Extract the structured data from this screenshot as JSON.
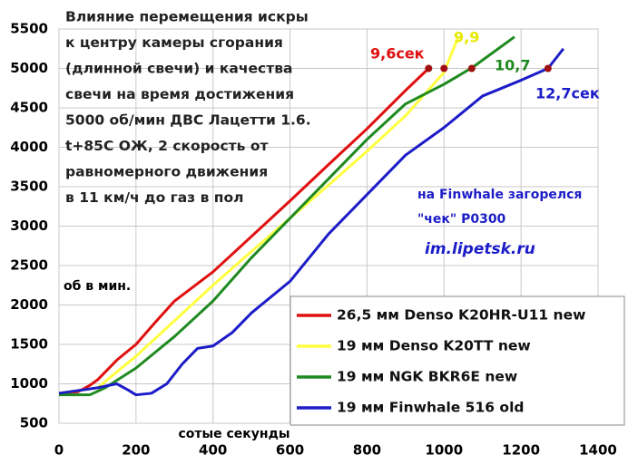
{
  "chart_data": {
    "type": "line",
    "title": [
      "Влияние перемещения искры",
      "к центру камеры сгорания",
      "(длинной свечи) и качества",
      "свечи на время достижения",
      "5000 об/мин ДВС Лацетти 1.6.",
      "t+85C ОЖ, 2 скорость от",
      "равномерного движения",
      "в 11 км/ч до газ в пол"
    ],
    "x_label": "сотые секунды",
    "y_label": "об в мин.",
    "xlim": [
      0,
      1400
    ],
    "xticks": [
      0,
      200,
      400,
      600,
      800,
      1000,
      1200,
      1400
    ],
    "ylim": [
      500,
      5500
    ],
    "yticks": [
      500,
      1000,
      1500,
      2000,
      2500,
      3000,
      3500,
      4000,
      4500,
      5000,
      5500
    ],
    "grid": true,
    "series": [
      {
        "name": "26,5 мм Denso K20HR-U11 new",
        "color": "#e01010",
        "x": [
          0,
          50,
          80,
          100,
          150,
          200,
          250,
          300,
          400,
          500,
          600,
          700,
          800,
          900,
          960
        ],
        "values": [
          880,
          900,
          980,
          1050,
          1300,
          1500,
          1780,
          2050,
          2420,
          2870,
          3320,
          3780,
          4235,
          4720,
          5000
        ]
      },
      {
        "name": "19 мм Denso K20TT new",
        "color": "#ffff40",
        "x": [
          0,
          100,
          150,
          200,
          300,
          400,
          500,
          600,
          700,
          800,
          900,
          1000,
          1037
        ],
        "values": [
          880,
          950,
          1150,
          1350,
          1800,
          2250,
          2680,
          3100,
          3520,
          3950,
          4400,
          4950,
          5400
        ]
      },
      {
        "name": "19 мм NGK BKR6E new",
        "color": "#1f8a1f",
        "x": [
          0,
          80,
          120,
          200,
          300,
          400,
          500,
          600,
          700,
          800,
          900,
          1000,
          1072,
          1183
        ],
        "values": [
          860,
          860,
          950,
          1200,
          1600,
          2050,
          2600,
          3100,
          3600,
          4100,
          4550,
          4800,
          5006,
          5400
        ]
      },
      {
        "name": "19 мм Finwhale 516 old",
        "color": "#1c1cc8",
        "x": [
          0,
          100,
          150,
          180,
          200,
          240,
          280,
          320,
          360,
          400,
          450,
          500,
          600,
          700,
          800,
          900,
          1000,
          1100,
          1200,
          1270,
          1310
        ],
        "values": [
          880,
          950,
          1000,
          920,
          860,
          880,
          1000,
          1250,
          1450,
          1480,
          1650,
          1900,
          2300,
          2900,
          3400,
          3900,
          4250,
          4650,
          4850,
          5000,
          5250
        ]
      }
    ],
    "markers": {
      "color": "#a01010",
      "x": [
        960,
        1000,
        1072,
        1270
      ],
      "y": [
        5000,
        5000,
        5000,
        5000
      ]
    },
    "annotations": [
      {
        "text": "9,6сек",
        "color": "#e01010"
      },
      {
        "text": "9,9",
        "color": "#e8e800"
      },
      {
        "text": "10,7",
        "color": "#1f8a1f"
      },
      {
        "text": "12,7сек",
        "color": "#1c1cc8"
      },
      {
        "text": "на Finwhale загорелся",
        "color": "#1c1cc8"
      },
      {
        "text": "\"чек\" P0300",
        "color": "#1c1cc8"
      },
      {
        "text": "im.lipetsk.ru",
        "color": "#1c1cc8"
      }
    ]
  }
}
